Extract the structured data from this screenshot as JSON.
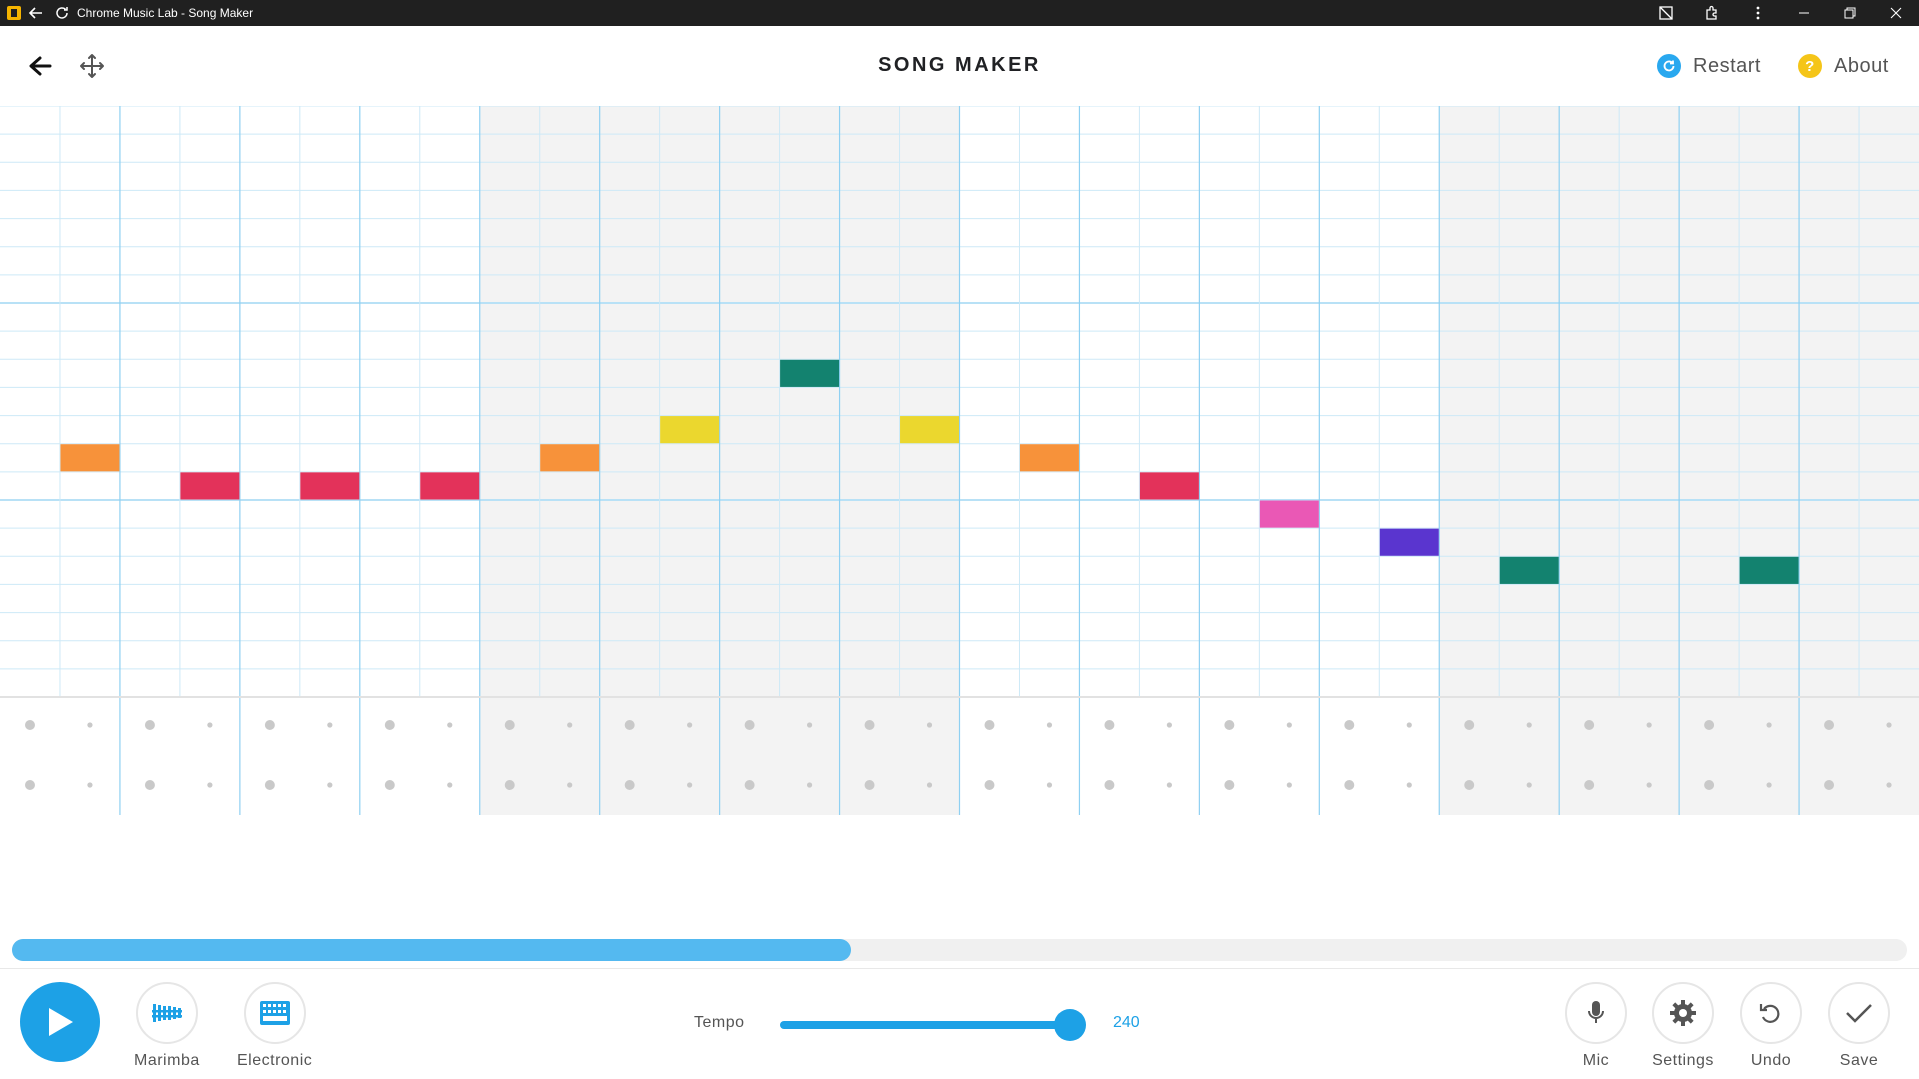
{
  "window": {
    "title": "Chrome Music Lab - Song Maker"
  },
  "header": {
    "title": "SONG MAKER",
    "restart_label": "Restart",
    "about_label": "About",
    "about_glyph": "?"
  },
  "grid": {
    "columns_visible": 32,
    "melody_rows": 21,
    "beats_per_measure": 2,
    "subdivisions_per_beat": 2,
    "shaded_measures": [
      2,
      3,
      6,
      7
    ],
    "notes": [
      {
        "col": 1,
        "row": 12,
        "color": "#f7923a"
      },
      {
        "col": 3,
        "row": 13,
        "color": "#e3325a"
      },
      {
        "col": 5,
        "row": 13,
        "color": "#e3325a"
      },
      {
        "col": 7,
        "row": 13,
        "color": "#e3325a"
      },
      {
        "col": 9,
        "row": 12,
        "color": "#f7923a"
      },
      {
        "col": 11,
        "row": 11,
        "color": "#ebd72e"
      },
      {
        "col": 13,
        "row": 9,
        "color": "#13826f"
      },
      {
        "col": 15,
        "row": 11,
        "color": "#ebd72e"
      },
      {
        "col": 17,
        "row": 12,
        "color": "#f7923a"
      },
      {
        "col": 19,
        "row": 13,
        "color": "#e3325a"
      },
      {
        "col": 21,
        "row": 14,
        "color": "#ea58b5"
      },
      {
        "col": 23,
        "row": 15,
        "color": "#5a35cf"
      },
      {
        "col": 25,
        "row": 16,
        "color": "#13826f"
      },
      {
        "col": 29,
        "row": 16,
        "color": "#13826f"
      }
    ]
  },
  "scroll": {
    "position_fraction": 0.443
  },
  "footer": {
    "play_icon": "play-icon",
    "instruments": [
      {
        "label": "Marimba",
        "icon": "marimba-icon"
      },
      {
        "label": "Electronic",
        "icon": "electronic-icon"
      }
    ],
    "tempo_label": "Tempo",
    "tempo_value": "240",
    "tempo_fraction": 0.95,
    "tools": [
      {
        "label": "Mic",
        "icon": "mic-icon"
      },
      {
        "label": "Settings",
        "icon": "gear-icon"
      },
      {
        "label": "Undo",
        "icon": "undo-icon"
      },
      {
        "label": "Save",
        "icon": "check-icon"
      }
    ]
  },
  "colors": {
    "accent": "#1da1e6",
    "grid_line": "#cde9f7",
    "bar_line": "#8fd0f2",
    "octave_line": "#b8e1f6",
    "shade": "#f3f3f3",
    "restart_icon": "#29a8ef",
    "about_icon": "#f5c518"
  }
}
